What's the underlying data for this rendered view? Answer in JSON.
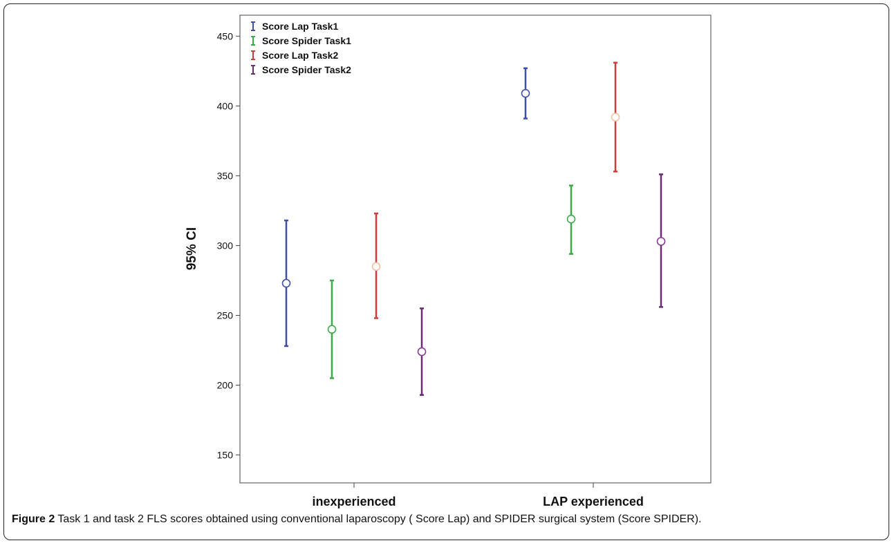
{
  "chart_data": {
    "type": "errorbar",
    "ylabel": "95% CI",
    "xlabel": "",
    "ylim": [
      130,
      465
    ],
    "yticks": [
      150,
      200,
      250,
      300,
      350,
      400,
      450
    ],
    "categories": [
      "inexperienced",
      "LAP experienced"
    ],
    "series": [
      {
        "name": "Score Lap Task1",
        "color": "#3f4fa3",
        "marker_color": "#3f4fa3",
        "mean": [
          273,
          409
        ],
        "lower": [
          228,
          391
        ],
        "upper": [
          318,
          427
        ]
      },
      {
        "name": "Score Spider Task1",
        "color": "#3aaa48",
        "marker_color": "#3aaa48",
        "mean": [
          240,
          319
        ],
        "lower": [
          205,
          294
        ],
        "upper": [
          275,
          343
        ]
      },
      {
        "name": "Score Lap Task2",
        "color": "#d23a3a",
        "marker_color": "#f2c2a0",
        "mean": [
          285,
          392
        ],
        "lower": [
          248,
          353
        ],
        "upper": [
          323,
          431
        ]
      },
      {
        "name": "Score Spider Task2",
        "color": "#6a2a74",
        "marker_color": "#8a3a96",
        "mean": [
          224,
          303
        ],
        "lower": [
          193,
          256
        ],
        "upper": [
          255,
          351
        ]
      }
    ],
    "legend_position": "top-left"
  },
  "caption": {
    "label": "Figure 2",
    "text": " Task 1 and task 2 FLS scores obtained using conventional laparoscopy ( Score Lap) and SPIDER surgical system (Score SPIDER)."
  }
}
